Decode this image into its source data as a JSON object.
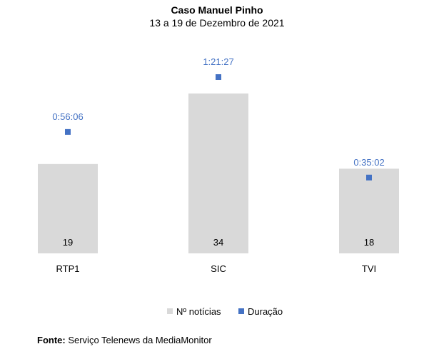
{
  "chart_data": {
    "type": "bar",
    "title": "Caso Manuel Pinho",
    "subtitle": "13 a 19 de Dezembro de 2021",
    "categories": [
      "RTP1",
      "SIC",
      "TVI"
    ],
    "series": [
      {
        "name": "Nº notícias",
        "type": "bar",
        "values": [
          19,
          34,
          18
        ],
        "color": "#d9d9d9"
      },
      {
        "name": "Duração",
        "type": "scatter",
        "values": [
          "0:56:06",
          "1:21:27",
          "0:35:02"
        ],
        "seconds": [
          3366,
          4887,
          2102
        ],
        "color": "#4472c4"
      }
    ],
    "legend": "bottom",
    "grid": false
  },
  "source": {
    "label": "Fonte:",
    "text": " Serviço Telenews da MediaMonitor"
  }
}
